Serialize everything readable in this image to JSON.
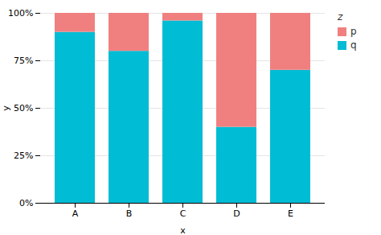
{
  "chart_data": {
    "type": "bar",
    "stacked": true,
    "categories": [
      "A",
      "B",
      "C",
      "D",
      "E"
    ],
    "series": [
      {
        "name": "q",
        "color": "#00BCD4",
        "values": [
          0.9,
          0.8,
          0.96,
          0.4,
          0.7
        ]
      },
      {
        "name": "p",
        "color": "#F08080",
        "values": [
          0.1,
          0.2,
          0.04,
          0.6,
          0.3
        ]
      }
    ],
    "xlabel": "x",
    "ylabel": "y",
    "legend_title": "z",
    "ylim": [
      0,
      1.0
    ],
    "yticks": [
      {
        "value": 0,
        "label": "0%"
      },
      {
        "value": 0.25,
        "label": "25%"
      },
      {
        "value": 0.5,
        "label": "50%"
      },
      {
        "value": 0.75,
        "label": "75%"
      },
      {
        "value": 1.0,
        "label": "100%"
      }
    ],
    "grid": true,
    "legend": "right"
  }
}
